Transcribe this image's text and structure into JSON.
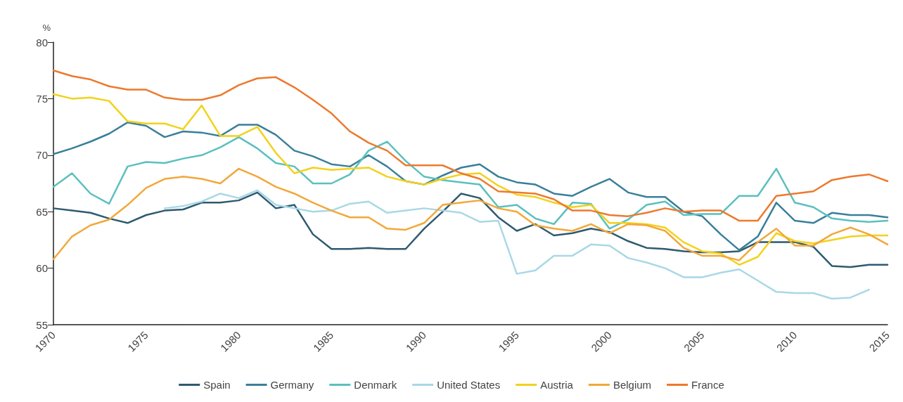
{
  "chart_data": {
    "type": "line",
    "ylabel": "%",
    "xlim": [
      1970,
      2015
    ],
    "xticks": [
      1970,
      1975,
      1980,
      1985,
      1990,
      1995,
      2000,
      2005,
      2010,
      2015
    ],
    "ylim": [
      55,
      80
    ],
    "yticks": [
      55,
      60,
      65,
      70,
      75,
      80
    ],
    "grid": false,
    "legend": "bottom",
    "marker": "none",
    "line_style": "solid",
    "x": [
      1970,
      1971,
      1972,
      1973,
      1974,
      1975,
      1976,
      1977,
      1978,
      1979,
      1980,
      1981,
      1982,
      1983,
      1984,
      1985,
      1986,
      1987,
      1988,
      1989,
      1990,
      1991,
      1992,
      1993,
      1994,
      1995,
      1996,
      1997,
      1998,
      1999,
      2000,
      2001,
      2002,
      2003,
      2004,
      2005,
      2006,
      2007,
      2008,
      2009,
      2010,
      2011,
      2012,
      2013,
      2014,
      2015
    ],
    "series": [
      {
        "name": "Spain",
        "color": "#2e5a70",
        "values": [
          65.3,
          65.1,
          64.9,
          64.4,
          64.0,
          64.7,
          65.1,
          65.2,
          65.8,
          65.8,
          66.0,
          66.7,
          65.3,
          65.6,
          63.0,
          61.7,
          61.7,
          61.8,
          61.7,
          61.7,
          63.5,
          65.0,
          66.6,
          66.2,
          64.5,
          63.3,
          63.9,
          62.9,
          63.1,
          63.5,
          63.2,
          62.4,
          61.8,
          61.7,
          61.5,
          61.4,
          61.4,
          61.5,
          62.3,
          62.3,
          62.3,
          61.9,
          60.2,
          60.1,
          60.3,
          60.3
        ]
      },
      {
        "name": "Germany",
        "color": "#3a7f9a",
        "values": [
          70.1,
          70.6,
          71.2,
          71.9,
          72.9,
          72.6,
          71.6,
          72.1,
          72.0,
          71.7,
          72.7,
          72.7,
          71.8,
          70.4,
          69.9,
          69.2,
          69.0,
          70.0,
          69.0,
          67.7,
          67.4,
          68.2,
          68.9,
          69.2,
          68.1,
          67.6,
          67.4,
          66.6,
          66.4,
          67.2,
          67.9,
          66.7,
          66.3,
          66.3,
          65.0,
          64.6,
          63.0,
          61.6,
          62.8,
          65.8,
          64.2,
          64.0,
          64.9,
          64.7,
          64.7,
          64.5
        ]
      },
      {
        "name": "Denmark",
        "color": "#5bc0be",
        "values": [
          67.2,
          68.4,
          66.6,
          65.7,
          69.0,
          69.4,
          69.3,
          69.7,
          70.0,
          70.7,
          71.6,
          70.6,
          69.3,
          69.0,
          67.5,
          67.5,
          68.3,
          70.4,
          71.2,
          69.5,
          68.1,
          67.8,
          67.6,
          67.4,
          65.4,
          65.6,
          64.4,
          63.9,
          65.8,
          65.7,
          63.5,
          64.3,
          65.6,
          65.9,
          64.7,
          64.8,
          64.8,
          66.4,
          66.4,
          68.8,
          65.8,
          65.4,
          64.4,
          64.2,
          64.1,
          64.2
        ]
      },
      {
        "name": "United States",
        "color": "#a9d8e6",
        "values": [
          null,
          null,
          null,
          null,
          null,
          null,
          65.3,
          65.5,
          65.9,
          66.6,
          66.2,
          66.9,
          65.6,
          65.3,
          65.0,
          65.1,
          65.7,
          65.9,
          64.9,
          65.1,
          65.3,
          65.1,
          64.9,
          64.1,
          64.2,
          59.5,
          59.8,
          61.1,
          61.1,
          62.1,
          62.0,
          60.9,
          60.5,
          60.0,
          59.2,
          59.2,
          59.6,
          59.9,
          58.9,
          57.9,
          57.8,
          57.8,
          57.3,
          57.4,
          58.1,
          null
        ]
      },
      {
        "name": "Austria",
        "color": "#f2d21b",
        "values": [
          75.4,
          75.0,
          75.1,
          74.8,
          73.0,
          72.8,
          72.8,
          72.3,
          74.4,
          71.7,
          71.7,
          72.5,
          70.2,
          68.4,
          68.9,
          68.7,
          68.8,
          68.9,
          68.1,
          67.7,
          67.4,
          67.9,
          68.3,
          68.4,
          67.3,
          66.5,
          66.3,
          65.8,
          65.4,
          65.6,
          64.0,
          64.0,
          63.9,
          63.6,
          62.3,
          61.5,
          61.3,
          60.3,
          61.0,
          63.1,
          62.4,
          62.2,
          62.5,
          62.8,
          62.9,
          62.9
        ]
      },
      {
        "name": "Belgium",
        "color": "#f2a83a",
        "values": [
          60.8,
          62.8,
          63.8,
          64.3,
          65.6,
          67.1,
          67.9,
          68.1,
          67.9,
          67.5,
          68.8,
          68.1,
          67.2,
          66.6,
          65.8,
          65.1,
          64.5,
          64.5,
          63.5,
          63.4,
          64.0,
          65.6,
          65.8,
          66.0,
          65.3,
          65.0,
          63.8,
          63.5,
          63.3,
          63.9,
          63.1,
          63.9,
          63.8,
          63.3,
          61.8,
          61.1,
          61.1,
          60.7,
          62.3,
          63.5,
          62.0,
          62.0,
          63.0,
          63.6,
          63.0,
          62.1
        ]
      },
      {
        "name": "France",
        "color": "#ec7a2e",
        "values": [
          77.5,
          77.0,
          76.7,
          76.1,
          75.8,
          75.8,
          75.1,
          74.9,
          74.9,
          75.3,
          76.2,
          76.8,
          76.9,
          76.0,
          74.9,
          73.7,
          72.1,
          71.1,
          70.4,
          69.1,
          69.1,
          69.1,
          68.4,
          67.9,
          66.8,
          66.7,
          66.6,
          66.1,
          65.1,
          65.1,
          64.7,
          64.6,
          64.9,
          65.3,
          65.0,
          65.1,
          65.1,
          64.2,
          64.2,
          66.4,
          66.6,
          66.8,
          67.8,
          68.1,
          68.3,
          67.7
        ]
      }
    ]
  }
}
